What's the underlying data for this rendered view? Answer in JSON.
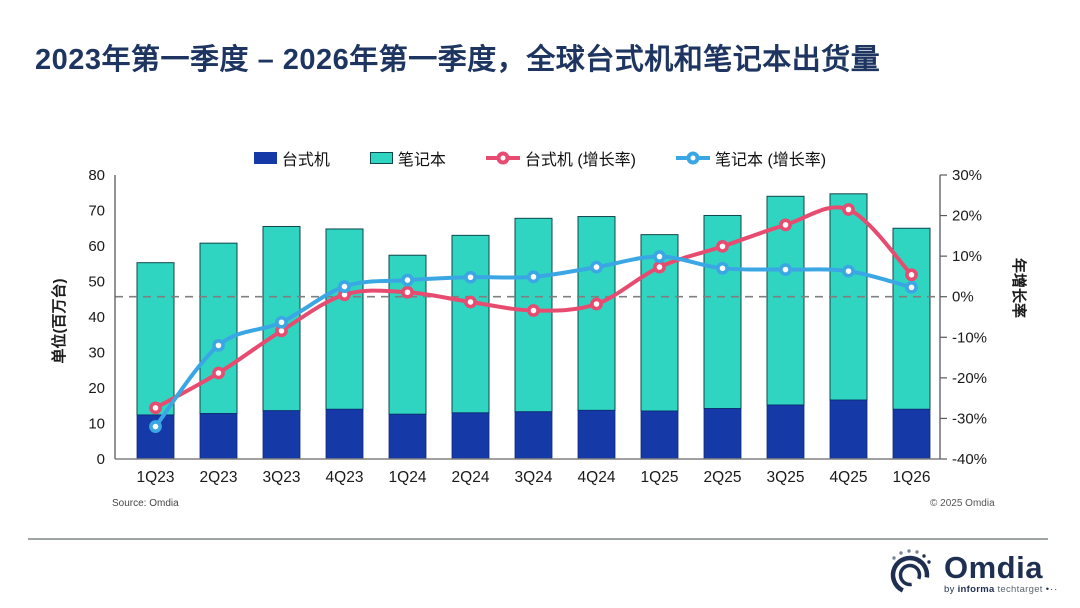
{
  "page": {
    "title": "2023年第一季度 – 2026年第一季度，全球台式机和笔记本出货量"
  },
  "legend": {
    "items": [
      {
        "label": "台式机",
        "type": "square",
        "color": "#1539A7"
      },
      {
        "label": "笔记本",
        "type": "square",
        "color": "#2FD5C1"
      },
      {
        "label": "台式机 (增长率)",
        "type": "line",
        "color": "#E74C70"
      },
      {
        "label": "笔记本 (增长率)",
        "type": "line",
        "color": "#3AA7E4"
      }
    ]
  },
  "chart_data": {
    "type": "combo-stacked-bar-line",
    "categories": [
      "1Q23",
      "2Q23",
      "3Q23",
      "4Q23",
      "1Q24",
      "2Q24",
      "3Q24",
      "4Q24",
      "1Q25",
      "2Q25",
      "3Q25",
      "4Q25",
      "1Q26"
    ],
    "bar_series": [
      {
        "name": "台式机",
        "color": "#1539A7",
        "stroke": "#0D2B7A",
        "axis": "left",
        "values": [
          12.4,
          12.8,
          13.6,
          14.0,
          12.6,
          13.0,
          13.3,
          13.7,
          13.5,
          14.2,
          15.2,
          16.6,
          14.0
        ]
      },
      {
        "name": "笔记本",
        "color": "#2FD5C1",
        "stroke": "#11474A",
        "axis": "left",
        "values": [
          42.9,
          48.0,
          51.9,
          50.8,
          44.8,
          50.0,
          54.5,
          54.6,
          49.7,
          54.4,
          58.8,
          58.1,
          51.0
        ]
      }
    ],
    "bar_totals": [
      55.3,
      60.8,
      65.5,
      64.8,
      57.4,
      63.0,
      67.8,
      68.3,
      63.2,
      68.6,
      74.0,
      74.7,
      65.0
    ],
    "line_series": [
      {
        "name": "台式机 (增长率)",
        "color": "#E74C70",
        "axis": "right",
        "values_pct": [
          -27.4,
          -18.8,
          -8.4,
          0.5,
          1.1,
          -1.3,
          -3.4,
          -1.8,
          7.3,
          12.4,
          17.7,
          21.5,
          5.4
        ]
      },
      {
        "name": "笔记本 (增长率)",
        "color": "#3AA7E4",
        "axis": "right",
        "values_pct": [
          -32.0,
          -12.0,
          -6.3,
          2.5,
          4.1,
          4.8,
          4.9,
          7.3,
          9.9,
          7.0,
          6.7,
          6.3,
          2.3
        ]
      }
    ],
    "left_axis": {
      "label": "单位(百万台)",
      "min": 0,
      "max": 80,
      "tick_step": 10,
      "ticks": [
        "0",
        "10",
        "20",
        "30",
        "40",
        "50",
        "60",
        "70",
        "80"
      ]
    },
    "right_axis": {
      "label": "年增长率",
      "min": -40,
      "max": 30,
      "tick_step": 10,
      "ticks": [
        "-40%",
        "-30%",
        "-20%",
        "-10%",
        "0%",
        "10%",
        "20%",
        "30%"
      ]
    },
    "zero_line": {
      "value_pct": 0,
      "style": "dashed",
      "color": "#7F7F7F"
    },
    "stacked": true,
    "grid": false,
    "legend_position": "top"
  },
  "footer": {
    "source_label": "Source: Omdia",
    "copyright_label": "© 2025 Omdia"
  },
  "logo": {
    "brand": "Omdia",
    "by": "by",
    "informa": "informa",
    "techtarget": "techtarget",
    "dots": "•··"
  }
}
